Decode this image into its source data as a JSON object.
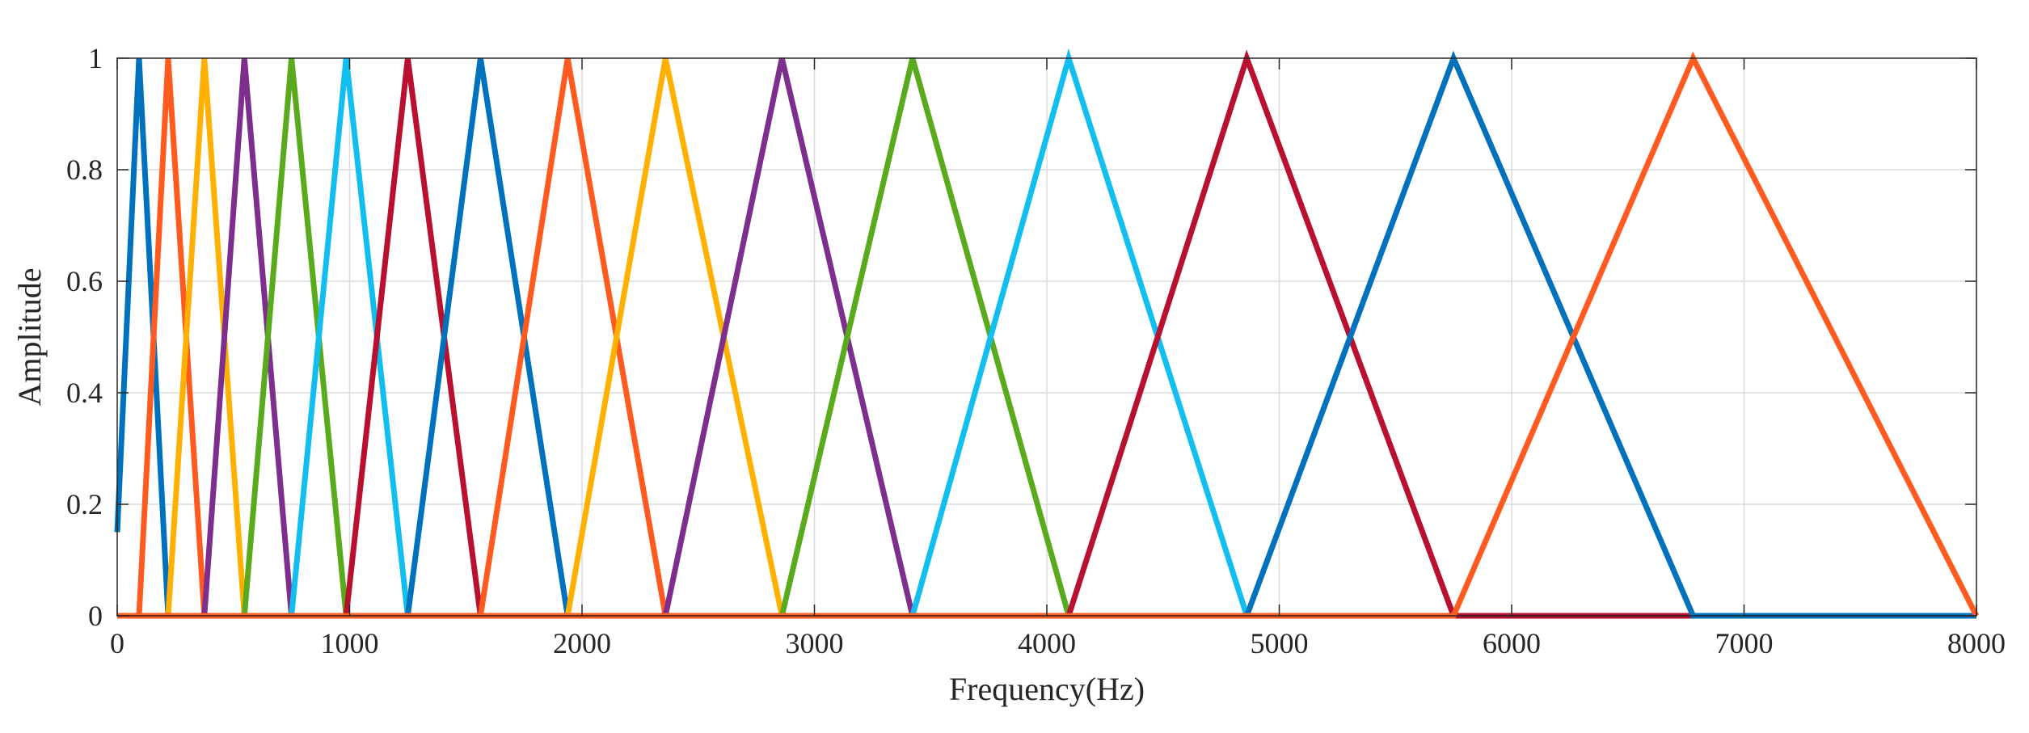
{
  "chart_data": {
    "type": "line",
    "xlabel": "Frequency(Hz)",
    "ylabel": "Amplitude",
    "xlim": [
      0,
      8000
    ],
    "ylim": [
      0,
      1
    ],
    "xticks": [
      0,
      1000,
      2000,
      3000,
      4000,
      5000,
      6000,
      7000,
      8000
    ],
    "yticks": [
      0,
      0.2,
      0.4,
      0.6,
      0.8,
      1
    ],
    "xtick_labels": [
      "0",
      "1000",
      "2000",
      "3000",
      "4000",
      "5000",
      "6000",
      "7000",
      "8000"
    ],
    "ytick_labels": [
      "0",
      "0.2",
      "0.4",
      "0.6",
      "0.8",
      "1"
    ],
    "grid": true,
    "filter_peaks": [
      0,
      94,
      219,
      375,
      547,
      750,
      985,
      1250,
      1563,
      1938,
      2359,
      2860,
      3422,
      4094,
      4860,
      5750,
      6781,
      8000
    ],
    "series": [
      {
        "color": "#0072BD",
        "x": [
          0,
          94,
          219,
          8000
        ],
        "y": [
          0.15,
          1,
          0,
          0
        ]
      },
      {
        "color": "#FF5A1F",
        "x": [
          0,
          94,
          219,
          375,
          8000
        ],
        "y": [
          0,
          0,
          1,
          0,
          0
        ]
      },
      {
        "color": "#FFB000",
        "x": [
          0,
          219,
          375,
          547,
          8000
        ],
        "y": [
          0,
          0,
          1,
          0,
          0
        ]
      },
      {
        "color": "#7E2F8E",
        "x": [
          0,
          375,
          547,
          750,
          8000
        ],
        "y": [
          0,
          0,
          1,
          0,
          0
        ]
      },
      {
        "color": "#5AAA1E",
        "x": [
          0,
          547,
          750,
          985,
          8000
        ],
        "y": [
          0,
          0,
          1,
          0,
          0
        ]
      },
      {
        "color": "#12BEF0",
        "x": [
          0,
          750,
          985,
          1250,
          8000
        ],
        "y": [
          0,
          0,
          1,
          0,
          0
        ]
      },
      {
        "color": "#B8102E",
        "x": [
          0,
          985,
          1250,
          1563,
          8000
        ],
        "y": [
          0,
          0,
          1,
          0,
          0
        ]
      },
      {
        "color": "#0072BD",
        "x": [
          0,
          1250,
          1563,
          1938,
          8000
        ],
        "y": [
          0,
          0,
          1,
          0,
          0
        ]
      },
      {
        "color": "#FF5A1F",
        "x": [
          0,
          1563,
          1938,
          2359,
          8000
        ],
        "y": [
          0,
          0,
          1,
          0,
          0
        ]
      },
      {
        "color": "#FFB000",
        "x": [
          0,
          1938,
          2359,
          2860,
          8000
        ],
        "y": [
          0,
          0,
          1,
          0,
          0
        ]
      },
      {
        "color": "#7E2F8E",
        "x": [
          0,
          2359,
          2860,
          3422,
          8000
        ],
        "y": [
          0,
          0,
          1,
          0,
          0
        ]
      },
      {
        "color": "#5AAA1E",
        "x": [
          0,
          2860,
          3422,
          4094,
          8000
        ],
        "y": [
          0,
          0,
          1,
          0,
          0
        ]
      },
      {
        "color": "#12BEF0",
        "x": [
          0,
          3422,
          4094,
          4860,
          8000
        ],
        "y": [
          0,
          0,
          1,
          0,
          0
        ]
      },
      {
        "color": "#B8102E",
        "x": [
          0,
          4094,
          4860,
          5750,
          8000
        ],
        "y": [
          0,
          0,
          1,
          0,
          0
        ]
      },
      {
        "color": "#0072BD",
        "x": [
          0,
          4860,
          5750,
          6781,
          8000
        ],
        "y": [
          0,
          0,
          1,
          0,
          0
        ]
      },
      {
        "color": "#FF5A1F",
        "x": [
          0,
          5750,
          6781,
          8000
        ],
        "y": [
          0,
          0,
          1,
          0
        ]
      }
    ]
  }
}
